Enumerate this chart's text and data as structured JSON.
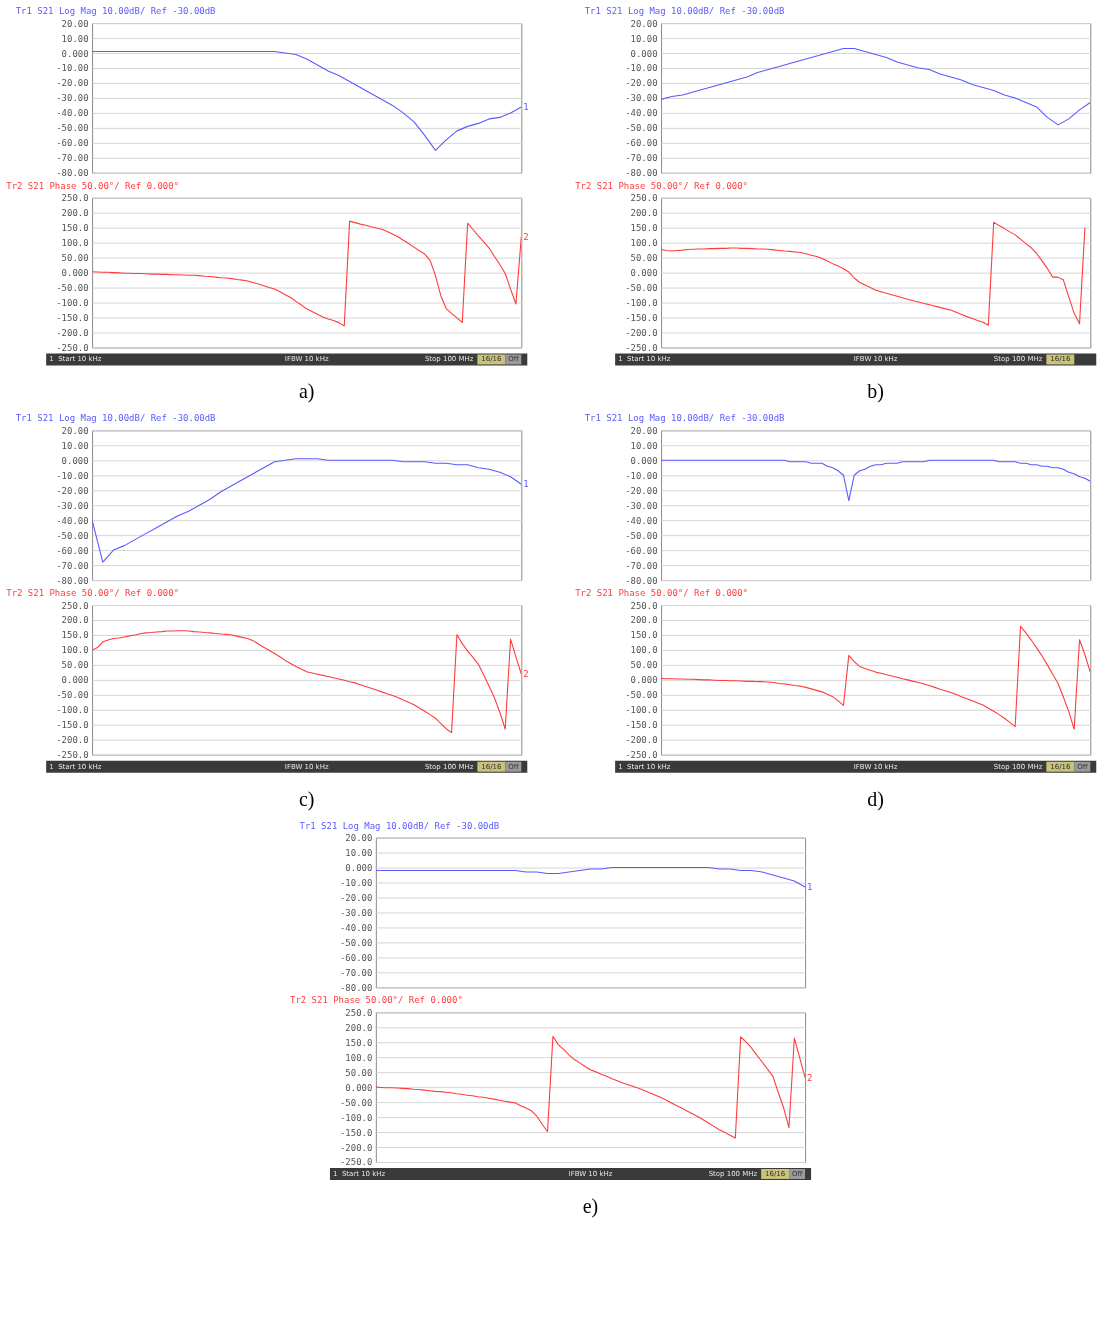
{
  "chart_data": [
    {
      "type": "line",
      "title": "Tr1 S21 Log Mag 10.00dB/ Ref -30.00dB",
      "grid": "y",
      "tick_labels": "y",
      "ylim": [
        -80,
        20
      ],
      "categories": [
        null,
        null,
        null,
        null,
        null,
        null,
        null,
        null,
        null,
        null,
        null,
        null,
        null,
        null,
        null,
        null,
        null,
        null,
        null,
        null,
        null,
        null,
        null,
        null,
        null,
        null,
        null,
        null,
        null,
        null,
        null,
        null,
        null,
        null,
        null,
        null,
        null,
        null,
        null,
        null,
        null
      ],
      "yticks": [
        {
          "value": 20,
          "label": "20.00"
        },
        {
          "value": 10,
          "label": "10.00"
        },
        {
          "value": 0,
          "label": "0.000"
        },
        {
          "value": -10,
          "label": "-10.00"
        },
        {
          "value": -20,
          "label": "-20.00"
        },
        {
          "value": -30,
          "label": "-30.00"
        },
        {
          "value": -40,
          "label": "-40.00"
        },
        {
          "value": -50,
          "label": "-50.00"
        },
        {
          "value": -60,
          "label": "-60.00"
        },
        {
          "value": -70,
          "label": "-70.00"
        },
        {
          "value": -80,
          "label": "-80.00"
        }
      ],
      "series": [
        {
          "color": "#5a5aff",
          "values": [
            1,
            1,
            1,
            1,
            1,
            1,
            1,
            1,
            1,
            1,
            1,
            1,
            1,
            1,
            1,
            1,
            1,
            1,
            0,
            -1,
            -4,
            -8,
            -12,
            -15,
            -19,
            -23,
            -27,
            -31,
            -35,
            -40,
            -46,
            -55,
            -65,
            -58,
            -52,
            -49,
            -47,
            -44,
            -43,
            -40,
            -36
          ]
        }
      ],
      "annotations": [
        {
          "text": "1",
          "y": -36
        }
      ]
    },
    {
      "type": "line",
      "title": "Tr2 S21 Phase 50.00°/ Ref 0.000°",
      "grid": "y",
      "tick_labels": "y",
      "ylim": [
        -250,
        250
      ],
      "categories": [
        null,
        null,
        null,
        null,
        null,
        null,
        null,
        null,
        null,
        null,
        null,
        null,
        null,
        null,
        null,
        null,
        null,
        null,
        null,
        null,
        null,
        null,
        null,
        null,
        null,
        null,
        null,
        null,
        null,
        null,
        null,
        null,
        null,
        null,
        null,
        null,
        null,
        null,
        null,
        null,
        null,
        null,
        null,
        null,
        null,
        null,
        null,
        null,
        null,
        null,
        null,
        null,
        null,
        null,
        null,
        null,
        null,
        null,
        null,
        null,
        null,
        null,
        null,
        null,
        null,
        null,
        null,
        null,
        null,
        null,
        null,
        null,
        null,
        null,
        null,
        null,
        null,
        null,
        null,
        null,
        null
      ],
      "yticks": [
        {
          "value": 250,
          "label": "250.0"
        },
        {
          "value": 200,
          "label": "200.0"
        },
        {
          "value": 150,
          "label": "150.0"
        },
        {
          "value": 100,
          "label": "100.0"
        },
        {
          "value": 50,
          "label": "50.00"
        },
        {
          "value": 0,
          "label": "0.000"
        },
        {
          "value": -50,
          "label": "-50.00"
        },
        {
          "value": -100,
          "label": "-100.0"
        },
        {
          "value": -150,
          "label": "-150.0"
        },
        {
          "value": -200,
          "label": "-200.0"
        },
        {
          "value": -250,
          "label": "-250.0"
        }
      ],
      "series": [
        {
          "color": "#ff3b3b",
          "values": [
            3,
            2,
            1,
            1,
            0,
            -1,
            -2,
            -2,
            -3,
            -3,
            -4,
            -5,
            -5,
            -6,
            -6,
            -7,
            -7,
            -8,
            -9,
            -9,
            -10,
            -12,
            -13,
            -15,
            -17,
            -18,
            -20,
            -23,
            -25,
            -28,
            -33,
            -38,
            -44,
            -50,
            -55,
            -64,
            -74,
            -83,
            -96,
            -108,
            -121,
            -130,
            -139,
            -148,
            -155,
            -160,
            -167,
            -178,
            172,
            167,
            162,
            158,
            153,
            149,
            145,
            137,
            129,
            120,
            108,
            97,
            85,
            73,
            62,
            41,
            -10,
            -77,
            -120,
            -136,
            -151,
            -166,
            165,
            144,
            123,
            103,
            82,
            54,
            27,
            -3,
            -55,
            -105,
            120
          ]
        }
      ],
      "annotations": [
        {
          "text": "2",
          "y": 120
        },
        "1",
        "Start 10 kHz",
        "IFBW 10 kHz",
        "Stop 100 MHz",
        "16/16",
        "Off",
        "a)"
      ]
    },
    {
      "type": "line",
      "title": "Tr1 S21 Log Mag 10.00dB/ Ref -30.00dB",
      "grid": "y",
      "tick_labels": "y",
      "ylim": [
        -80,
        20
      ],
      "categories": [
        null,
        null,
        null,
        null,
        null,
        null,
        null,
        null,
        null,
        null,
        null,
        null,
        null,
        null,
        null,
        null,
        null,
        null,
        null,
        null,
        null,
        null,
        null,
        null,
        null,
        null,
        null,
        null,
        null,
        null,
        null,
        null,
        null,
        null,
        null,
        null,
        null,
        null,
        null,
        null,
        null
      ],
      "yticks": [
        {
          "value": 20,
          "label": "20.00"
        },
        {
          "value": 10,
          "label": "10.00"
        },
        {
          "value": 0,
          "label": "0.000"
        },
        {
          "value": -10,
          "label": "-10.00"
        },
        {
          "value": -20,
          "label": "-20.00"
        },
        {
          "value": -30,
          "label": "-30.00"
        },
        {
          "value": -40,
          "label": "-40.00"
        },
        {
          "value": -50,
          "label": "-50.00"
        },
        {
          "value": -60,
          "label": "-60.00"
        },
        {
          "value": -70,
          "label": "-70.00"
        },
        {
          "value": -80,
          "label": "-80.00"
        }
      ],
      "series": [
        {
          "color": "#5a5aff",
          "values": [
            -31,
            -29,
            -28,
            -26,
            -24,
            -22,
            -20,
            -18,
            -16,
            -13,
            -11,
            -9,
            -7,
            -5,
            -3,
            -1,
            1,
            3,
            3,
            1,
            -1,
            -3,
            -6,
            -8,
            -10,
            -11,
            -14,
            -16,
            -18,
            -21,
            -23,
            -25,
            -28,
            -30,
            -33,
            -36,
            -43,
            -48,
            -44,
            -38,
            -33
          ]
        }
      ]
    },
    {
      "type": "line",
      "title": "Tr2 S21 Phase 50.00°/ Ref 0.000°",
      "grid": "y",
      "tick_labels": "y",
      "ylim": [
        -250,
        250
      ],
      "categories": [
        null,
        null,
        null,
        null,
        null,
        null,
        null,
        null,
        null,
        null,
        null,
        null,
        null,
        null,
        null,
        null,
        null,
        null,
        null,
        null,
        null,
        null,
        null,
        null,
        null,
        null,
        null,
        null,
        null,
        null,
        null,
        null,
        null,
        null,
        null,
        null,
        null,
        null,
        null,
        null,
        null,
        null,
        null,
        null,
        null,
        null,
        null,
        null,
        null,
        null,
        null,
        null,
        null,
        null,
        null,
        null,
        null,
        null,
        null,
        null,
        null,
        null,
        null,
        null,
        null,
        null,
        null,
        null,
        null,
        null,
        null,
        null,
        null,
        null,
        null,
        null,
        null,
        null,
        null,
        null,
        null
      ],
      "yticks": [
        {
          "value": 250,
          "label": "250.0"
        },
        {
          "value": 200,
          "label": "200.0"
        },
        {
          "value": 150,
          "label": "150.0"
        },
        {
          "value": 100,
          "label": "100.0"
        },
        {
          "value": 50,
          "label": "50.00"
        },
        {
          "value": 0,
          "label": "0.000"
        },
        {
          "value": -50,
          "label": "-50.00"
        },
        {
          "value": -100,
          "label": "-100.0"
        },
        {
          "value": -150,
          "label": "-150.0"
        },
        {
          "value": -200,
          "label": "-200.0"
        },
        {
          "value": -250,
          "label": "-250.0"
        }
      ],
      "series": [
        {
          "color": "#ff3b3b",
          "values": [
            77,
            74,
            72,
            74,
            75,
            77,
            78,
            79,
            79,
            80,
            80,
            81,
            81,
            82,
            82,
            81,
            81,
            80,
            79,
            79,
            78,
            76,
            74,
            72,
            71,
            69,
            67,
            63,
            58,
            54,
            47,
            39,
            30,
            22,
            13,
            2,
            -18,
            -32,
            -41,
            -50,
            -59,
            -64,
            -69,
            -74,
            -79,
            -84,
            -89,
            -94,
            -98,
            -103,
            -107,
            -112,
            -116,
            -121,
            -125,
            -132,
            -140,
            -147,
            -153,
            -160,
            -166,
            -176,
            168,
            157,
            147,
            136,
            126,
            112,
            97,
            83,
            64,
            39,
            14,
            -15,
            -15,
            -25,
            -82,
            -136,
            -171,
            150,
            null
          ]
        }
      ],
      "annotations": [
        "1",
        "Start 10 kHz",
        "IFBW 10 kHz",
        "Stop 100 MHz",
        "16/16",
        "b)"
      ]
    },
    {
      "type": "line",
      "title": "Tr1 S21 Log Mag 10.00dB/ Ref -30.00dB",
      "grid": "y",
      "tick_labels": "y",
      "ylim": [
        -80,
        20
      ],
      "categories": [
        null,
        null,
        null,
        null,
        null,
        null,
        null,
        null,
        null,
        null,
        null,
        null,
        null,
        null,
        null,
        null,
        null,
        null,
        null,
        null,
        null,
        null,
        null,
        null,
        null,
        null,
        null,
        null,
        null,
        null,
        null,
        null,
        null,
        null,
        null,
        null,
        null,
        null,
        null,
        null,
        null
      ],
      "yticks": [
        {
          "value": 20,
          "label": "20.00"
        },
        {
          "value": 10,
          "label": "10.00"
        },
        {
          "value": 0,
          "label": "0.000"
        },
        {
          "value": -10,
          "label": "-10.00"
        },
        {
          "value": -20,
          "label": "-20.00"
        },
        {
          "value": -30,
          "label": "-30.00"
        },
        {
          "value": -40,
          "label": "-40.00"
        },
        {
          "value": -50,
          "label": "-50.00"
        },
        {
          "value": -60,
          "label": "-60.00"
        },
        {
          "value": -70,
          "label": "-70.00"
        },
        {
          "value": -80,
          "label": "-80.00"
        }
      ],
      "series": [
        {
          "color": "#5a5aff",
          "values": [
            -40,
            -68,
            -60,
            -57,
            -53,
            -49,
            -45,
            -41,
            -37,
            -34,
            -30,
            -26,
            -21,
            -17,
            -13,
            -9,
            -5,
            -1,
            0,
            1,
            1,
            1,
            0,
            0,
            0,
            0,
            0,
            0,
            0,
            -1,
            -1,
            -1,
            -2,
            -2,
            -3,
            -3,
            -5,
            -6,
            -8,
            -11,
            -16
          ]
        }
      ],
      "annotations": [
        {
          "text": "1",
          "y": -16
        }
      ]
    },
    {
      "type": "line",
      "title": "Tr2 S21 Phase 50.00°/ Ref 0.000°",
      "grid": "y",
      "tick_labels": "y",
      "ylim": [
        -250,
        250
      ],
      "categories": [
        null,
        null,
        null,
        null,
        null,
        null,
        null,
        null,
        null,
        null,
        null,
        null,
        null,
        null,
        null,
        null,
        null,
        null,
        null,
        null,
        null,
        null,
        null,
        null,
        null,
        null,
        null,
        null,
        null,
        null,
        null,
        null,
        null,
        null,
        null,
        null,
        null,
        null,
        null,
        null,
        null,
        null,
        null,
        null,
        null,
        null,
        null,
        null,
        null,
        null,
        null,
        null,
        null,
        null,
        null,
        null,
        null,
        null,
        null,
        null,
        null,
        null,
        null,
        null,
        null,
        null,
        null,
        null,
        null,
        null,
        null,
        null,
        null,
        null,
        null,
        null,
        null,
        null,
        null,
        null,
        null
      ],
      "yticks": [
        {
          "value": 250,
          "label": "250.0"
        },
        {
          "value": 200,
          "label": "200.0"
        },
        {
          "value": 150,
          "label": "150.0"
        },
        {
          "value": 100,
          "label": "100.0"
        },
        {
          "value": 50,
          "label": "50.00"
        },
        {
          "value": 0,
          "label": "0.000"
        },
        {
          "value": -50,
          "label": "-50.00"
        },
        {
          "value": -100,
          "label": "-100.0"
        },
        {
          "value": -150,
          "label": "-150.0"
        },
        {
          "value": -200,
          "label": "-200.0"
        },
        {
          "value": -250,
          "label": "-250.0"
        }
      ],
      "series": [
        {
          "color": "#ff3b3b",
          "values": [
            99,
            108,
            127,
            133,
            138,
            140,
            143,
            147,
            150,
            154,
            157,
            158,
            160,
            161,
            163,
            163,
            164,
            164,
            163,
            161,
            160,
            158,
            157,
            155,
            153,
            152,
            150,
            146,
            142,
            138,
            131,
            120,
            109,
            99,
            88,
            77,
            65,
            55,
            45,
            36,
            27,
            23,
            19,
            15,
            11,
            7,
            3,
            -1,
            -6,
            -10,
            -16,
            -22,
            -28,
            -34,
            -40,
            -46,
            -52,
            -59,
            -67,
            -75,
            -83,
            -94,
            -105,
            -116,
            -128,
            -146,
            -163,
            -176,
            151,
            121,
            96,
            75,
            52,
            16,
            -21,
            -60,
            -109,
            -164,
            136,
            77,
            19
          ]
        }
      ],
      "annotations": [
        {
          "text": "2",
          "y": 19
        },
        "1",
        "Start 10 kHz",
        "IFBW 10 kHz",
        "Stop 100 MHz",
        "16/16",
        "Off",
        "c)"
      ]
    },
    {
      "type": "line",
      "title": "Tr1 S21 Log Mag 10.00dB/ Ref -30.00dB",
      "grid": "y",
      "tick_labels": "y",
      "ylim": [
        -80,
        20
      ],
      "categories": [
        null,
        null,
        null,
        null,
        null,
        null,
        null,
        null,
        null,
        null,
        null,
        null,
        null,
        null,
        null,
        null,
        null,
        null,
        null,
        null,
        null,
        null,
        null,
        null,
        null,
        null,
        null,
        null,
        null,
        null,
        null,
        null,
        null,
        null,
        null,
        null,
        null,
        null,
        null,
        null,
        null,
        null,
        null,
        null,
        null,
        null,
        null,
        null,
        null,
        null,
        null,
        null,
        null,
        null,
        null,
        null,
        null,
        null,
        null,
        null,
        null,
        null,
        null,
        null,
        null,
        null,
        null,
        null,
        null,
        null,
        null,
        null,
        null,
        null,
        null,
        null,
        null,
        null,
        null,
        null,
        null
      ],
      "yticks": [
        {
          "value": 20,
          "label": "20.00"
        },
        {
          "value": 10,
          "label": "10.00"
        },
        {
          "value": 0,
          "label": "0.000"
        },
        {
          "value": -10,
          "label": "-10.00"
        },
        {
          "value": -20,
          "label": "-20.00"
        },
        {
          "value": -30,
          "label": "-30.00"
        },
        {
          "value": -40,
          "label": "-40.00"
        },
        {
          "value": -50,
          "label": "-50.00"
        },
        {
          "value": -60,
          "label": "-60.00"
        },
        {
          "value": -70,
          "label": "-70.00"
        },
        {
          "value": -80,
          "label": "-80.00"
        }
      ],
      "series": [
        {
          "color": "#5a5aff",
          "values": [
            0,
            0,
            0,
            0,
            0,
            0,
            0,
            0,
            0,
            0,
            0,
            0,
            0,
            0,
            0,
            0,
            0,
            0,
            0,
            0,
            0,
            0,
            0,
            0,
            -1,
            -1,
            -1,
            -1,
            -2,
            -2,
            -2,
            -4,
            -5,
            -7,
            -10,
            -27,
            -10,
            -7,
            -6,
            -4,
            -3,
            -3,
            -2,
            -2,
            -2,
            -1,
            -1,
            -1,
            -1,
            -1,
            0,
            0,
            0,
            0,
            0,
            0,
            0,
            0,
            0,
            0,
            0,
            0,
            0,
            -1,
            -1,
            -1,
            -1,
            -2,
            -2,
            -3,
            -3,
            -4,
            -4,
            -5,
            -5,
            -6,
            -8,
            -9,
            -11,
            -12,
            -14
          ]
        }
      ]
    },
    {
      "type": "line",
      "title": "Tr2 S21 Phase 50.00°/ Ref 0.000°",
      "grid": "y",
      "tick_labels": "y",
      "ylim": [
        -250,
        250
      ],
      "categories": [
        null,
        null,
        null,
        null,
        null,
        null,
        null,
        null,
        null,
        null,
        null,
        null,
        null,
        null,
        null,
        null,
        null,
        null,
        null,
        null,
        null,
        null,
        null,
        null,
        null,
        null,
        null,
        null,
        null,
        null,
        null,
        null,
        null,
        null,
        null,
        null,
        null,
        null,
        null,
        null,
        null,
        null,
        null,
        null,
        null,
        null,
        null,
        null,
        null,
        null,
        null,
        null,
        null,
        null,
        null,
        null,
        null,
        null,
        null,
        null,
        null,
        null,
        null,
        null,
        null,
        null,
        null,
        null,
        null,
        null,
        null,
        null,
        null,
        null,
        null,
        null,
        null,
        null,
        null,
        null,
        null
      ],
      "yticks": [
        {
          "value": 250,
          "label": "250.0"
        },
        {
          "value": 200,
          "label": "200.0"
        },
        {
          "value": 150,
          "label": "150.0"
        },
        {
          "value": 100,
          "label": "100.0"
        },
        {
          "value": 50,
          "label": "50.00"
        },
        {
          "value": 0,
          "label": "0.000"
        },
        {
          "value": -50,
          "label": "-50.00"
        },
        {
          "value": -100,
          "label": "-100.0"
        },
        {
          "value": -150,
          "label": "-150.0"
        },
        {
          "value": -200,
          "label": "-200.0"
        },
        {
          "value": -250,
          "label": "-250.0"
        }
      ],
      "series": [
        {
          "color": "#ff3b3b",
          "values": [
            5,
            4,
            4,
            3,
            3,
            2,
            2,
            1,
            0,
            0,
            -1,
            -2,
            -2,
            -3,
            -3,
            -4,
            -5,
            -5,
            -6,
            -6,
            -7,
            -9,
            -12,
            -14,
            -16,
            -19,
            -21,
            -25,
            -30,
            -35,
            -40,
            -48,
            -56,
            -70,
            -85,
            82,
            61,
            45,
            38,
            32,
            26,
            22,
            17,
            13,
            9,
            4,
            0,
            -5,
            -9,
            -14,
            -19,
            -25,
            -31,
            -36,
            -42,
            -49,
            -56,
            -63,
            -70,
            -77,
            -84,
            -95,
            -105,
            -116,
            -128,
            -142,
            -156,
            179,
            157,
            133,
            107,
            80,
            50,
            19,
            -12,
            -58,
            -106,
            -165,
            134,
            84,
            26
          ]
        }
      ],
      "annotations": [
        "1",
        "Start 10 kHz",
        "IFBW 10 kHz",
        "Stop 100 MHz",
        "16/16",
        "Off",
        "d)"
      ]
    },
    {
      "type": "line",
      "title": "Tr1 S21 Log Mag 10.00dB/ Ref -30.00dB",
      "grid": "y",
      "tick_labels": "y",
      "ylim": [
        -80,
        20
      ],
      "categories": [
        null,
        null,
        null,
        null,
        null,
        null,
        null,
        null,
        null,
        null,
        null,
        null,
        null,
        null,
        null,
        null,
        null,
        null,
        null,
        null,
        null,
        null,
        null,
        null,
        null,
        null,
        null,
        null,
        null,
        null,
        null,
        null,
        null,
        null,
        null,
        null,
        null,
        null,
        null,
        null,
        null
      ],
      "yticks": [
        {
          "value": 20,
          "label": "20.00"
        },
        {
          "value": 10,
          "label": "10.00"
        },
        {
          "value": 0,
          "label": "0.000"
        },
        {
          "value": -10,
          "label": "-10.00"
        },
        {
          "value": -20,
          "label": "-20.00"
        },
        {
          "value": -30,
          "label": "-30.00"
        },
        {
          "value": -40,
          "label": "-40.00"
        },
        {
          "value": -50,
          "label": "-50.00"
        },
        {
          "value": -60,
          "label": "-60.00"
        },
        {
          "value": -70,
          "label": "-70.00"
        },
        {
          "value": -80,
          "label": "-80.00"
        }
      ],
      "series": [
        {
          "color": "#5a5aff",
          "values": [
            -2,
            -2,
            -2,
            -2,
            -2,
            -2,
            -2,
            -2,
            -2,
            -2,
            -2,
            -2,
            -2,
            -2,
            -3,
            -3,
            -4,
            -4,
            -3,
            -2,
            -1,
            -1,
            0,
            0,
            0,
            0,
            0,
            0,
            0,
            0,
            0,
            0,
            -1,
            -1,
            -2,
            -2,
            -3,
            -5,
            -7,
            -9,
            -13
          ]
        }
      ],
      "annotations": [
        {
          "text": "1",
          "y": -13
        }
      ]
    },
    {
      "type": "line",
      "title": "Tr2 S21 Phase 50.00°/ Ref 0.000°",
      "grid": "y",
      "tick_labels": "y",
      "ylim": [
        -250,
        250
      ],
      "categories": [
        null,
        null,
        null,
        null,
        null,
        null,
        null,
        null,
        null,
        null,
        null,
        null,
        null,
        null,
        null,
        null,
        null,
        null,
        null,
        null,
        null,
        null,
        null,
        null,
        null,
        null,
        null,
        null,
        null,
        null,
        null,
        null,
        null,
        null,
        null,
        null,
        null,
        null,
        null,
        null,
        null,
        null,
        null,
        null,
        null,
        null,
        null,
        null,
        null,
        null,
        null,
        null,
        null,
        null,
        null,
        null,
        null,
        null,
        null,
        null,
        null,
        null,
        null,
        null,
        null,
        null,
        null,
        null,
        null,
        null,
        null,
        null,
        null,
        null,
        null,
        null,
        null,
        null,
        null,
        null,
        null
      ],
      "yticks": [
        {
          "value": 250,
          "label": "250.0"
        },
        {
          "value": 200,
          "label": "200.0"
        },
        {
          "value": 150,
          "label": "150.0"
        },
        {
          "value": 100,
          "label": "100.0"
        },
        {
          "value": 50,
          "label": "50.00"
        },
        {
          "value": 0,
          "label": "0.000"
        },
        {
          "value": -50,
          "label": "-50.00"
        },
        {
          "value": -100,
          "label": "-100.0"
        },
        {
          "value": -150,
          "label": "-150.0"
        },
        {
          "value": -200,
          "label": "-200.0"
        },
        {
          "value": -250,
          "label": "-250.0"
        }
      ],
      "series": [
        {
          "color": "#ff3b3b",
          "values": [
            0,
            -1,
            -2,
            -2,
            -3,
            -4,
            -5,
            -7,
            -8,
            -10,
            -12,
            -14,
            -15,
            -17,
            -19,
            -22,
            -24,
            -27,
            -29,
            -32,
            -34,
            -37,
            -40,
            -44,
            -47,
            -50,
            -53,
            -62,
            -70,
            -79,
            -97,
            -124,
            -149,
            170,
            142,
            126,
            108,
            92,
            81,
            69,
            58,
            51,
            43,
            36,
            28,
            21,
            14,
            8,
            2,
            -4,
            -11,
            -19,
            -26,
            -34,
            -42,
            -52,
            -61,
            -70,
            -80,
            -89,
            -98,
            -109,
            -120,
            -131,
            -142,
            -151,
            -161,
            -170,
            168,
            151,
            131,
            107,
            84,
            60,
            36,
            -18,
            -69,
            -135,
            164,
            98,
            32
          ]
        }
      ],
      "annotations": [
        {
          "text": "2",
          "y": 32
        },
        "1",
        "Start 10 kHz",
        "IFBW 10 kHz",
        "Stop 100 MHz",
        "16/16",
        "Off",
        "e)"
      ]
    }
  ]
}
